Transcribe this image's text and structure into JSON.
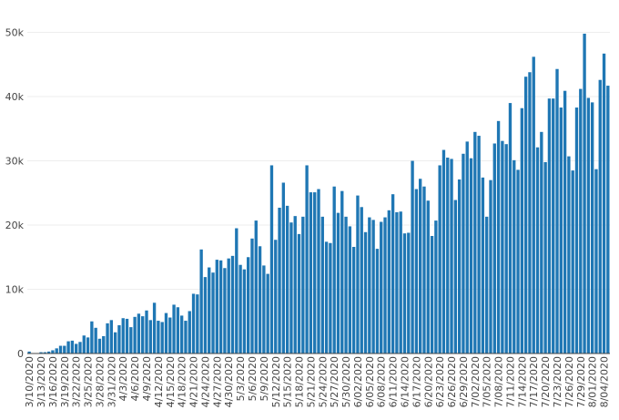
{
  "chart_data": {
    "type": "bar",
    "title": "",
    "xlabel": "",
    "ylabel": "",
    "x_start": "3/10/2020",
    "ylim": [
      0,
      51000
    ],
    "yticks": [
      0,
      10000,
      20000,
      30000,
      40000,
      50000
    ],
    "ytick_labels": [
      "0",
      "10k",
      "20k",
      "30k",
      "40k",
      "50k"
    ],
    "xtick_labels": [
      "3/10/2020",
      "3/13/2020",
      "3/16/2020",
      "3/19/2020",
      "3/22/2020",
      "3/25/2020",
      "3/28/2020",
      "3/31/2020",
      "4/3/2020",
      "4/6/2020",
      "4/9/2020",
      "4/12/2020",
      "4/15/2020",
      "4/18/2020",
      "4/21/2020",
      "4/24/2020",
      "4/27/2020",
      "4/30/2020",
      "5/3/2020",
      "5/6/2020",
      "5/9/2020",
      "5/12/2020",
      "5/15/2020",
      "5/18/2020",
      "5/21/2020",
      "5/24/2020",
      "5/27/2020",
      "5/30/2020",
      "6/02/2020",
      "6/05/2020",
      "6/08/2020",
      "6/11/2020",
      "6/14/2020",
      "6/17/2020",
      "6/20/2020",
      "6/23/2020",
      "6/26/2020",
      "6/29/2020",
      "7/02/2020",
      "7/05/2020",
      "7/08/2020",
      "7/11/2020",
      "7/14/2020",
      "7/17/2020",
      "7/20/2020",
      "7/23/2020",
      "7/26/2020",
      "7/29/2020",
      "8/01/2020",
      "8/04/2020"
    ],
    "bar_color": "#1f77b4",
    "grid": true,
    "values": [
      300,
      0,
      0,
      200,
      200,
      300,
      500,
      800,
      1200,
      1200,
      1900,
      2000,
      1500,
      1800,
      2800,
      2500,
      5000,
      4000,
      2300,
      2700,
      4700,
      5200,
      3300,
      4400,
      5500,
      5400,
      4100,
      5700,
      6200,
      5800,
      6700,
      5200,
      7900,
      5100,
      4900,
      6300,
      5600,
      7600,
      7200,
      5900,
      5100,
      6600,
      9300,
      9200,
      16200,
      11900,
      13400,
      12600,
      14600,
      14500,
      13300,
      14800,
      15200,
      19500,
      13800,
      13100,
      15000,
      17900,
      20700,
      16700,
      13700,
      12400,
      29300,
      17700,
      22700,
      26600,
      23000,
      20400,
      21400,
      18600,
      21300,
      29300,
      25100,
      25100,
      25600,
      21300,
      17400,
      17200,
      26000,
      21900,
      25300,
      21300,
      19800,
      16600,
      24600,
      22800,
      18900,
      21200,
      20800,
      16300,
      20500,
      21200,
      22300,
      24800,
      22000,
      22100,
      18700,
      18800,
      30000,
      25600,
      27200,
      26000,
      23800,
      18300,
      20700,
      29300,
      31700,
      30500,
      30300,
      23900,
      27100,
      31100,
      33000,
      30400,
      34500,
      33900,
      27400,
      21300,
      27000,
      32700,
      36200,
      33100,
      32600,
      39000,
      30100,
      28600,
      38200,
      43100,
      43800,
      46200,
      32100,
      34500,
      29800,
      39700,
      39700,
      44300,
      38300,
      40900,
      30700,
      28500,
      38300,
      41200,
      49800,
      39800,
      39100,
      28700,
      42600,
      46700,
      41700
    ]
  }
}
